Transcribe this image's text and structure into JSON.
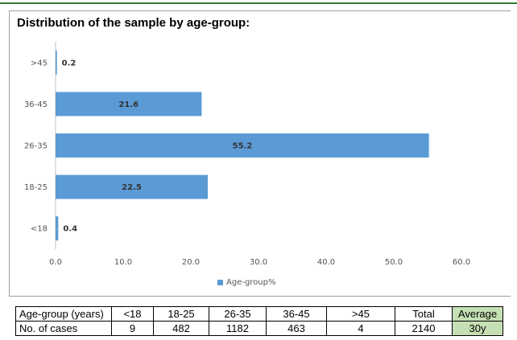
{
  "title": "Distribution of the sample by age-group:",
  "chart_data": {
    "type": "bar",
    "orientation": "horizontal",
    "categories": [
      ">45",
      "36-45",
      "26-35",
      "18-25",
      "<18"
    ],
    "series": [
      {
        "name": "Age-group%",
        "values": [
          0.2,
          21.6,
          55.2,
          22.5,
          0.4
        ],
        "color": "#5b9bd5"
      }
    ],
    "data_labels": [
      "0.2",
      "21.6",
      "55.2",
      "22.5",
      "0.4"
    ],
    "xlim": [
      0,
      60
    ],
    "xticks": [
      "0.0",
      "10.0",
      "20.0",
      "30.0",
      "40.0",
      "50.0",
      "60.0"
    ],
    "grid": false,
    "legend": "bottom"
  },
  "table": {
    "header": [
      "Age-group (years)",
      "<18",
      "18-25",
      "26-35",
      "36-45",
      ">45",
      "Total",
      "Average"
    ],
    "row": [
      "No. of cases",
      "9",
      "482",
      "1182",
      "463",
      "4",
      "2140",
      "30y"
    ]
  }
}
